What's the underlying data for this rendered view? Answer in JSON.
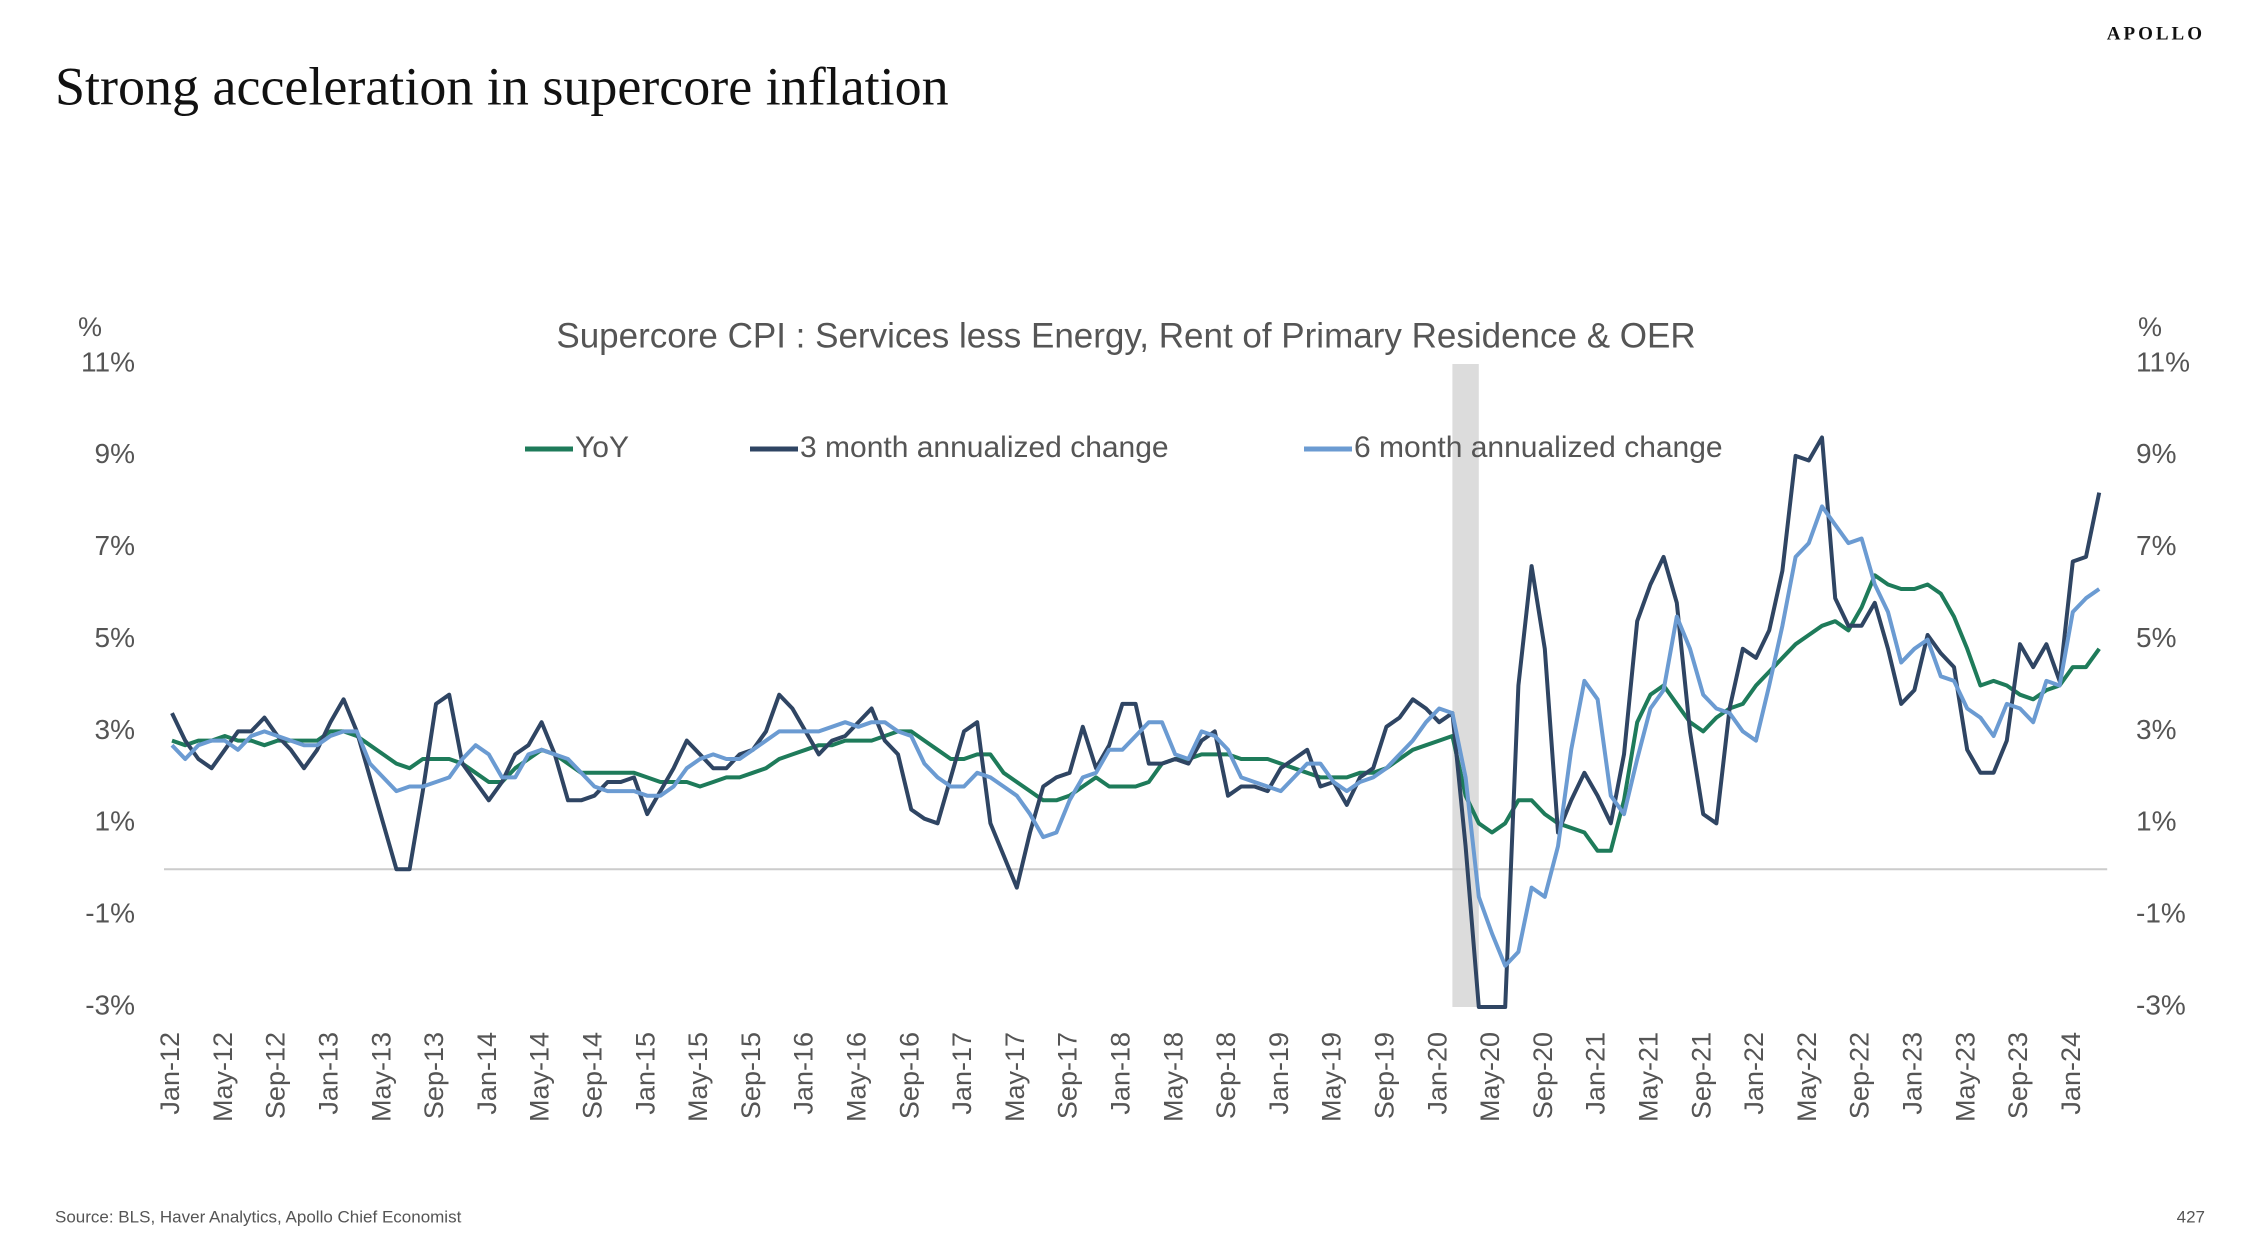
{
  "brand": "APOLLO",
  "page_title": "Strong acceleration in supercore inflation",
  "source": "Source: BLS, Haver Analytics, Apollo Chief Economist",
  "page_number": "427",
  "chart_data": {
    "type": "line",
    "title": "Supercore CPI : Services less Energy, Rent of Primary Residence & OER",
    "y_label": "%",
    "ylim": [
      -3,
      11
    ],
    "yticks": [
      {
        "value": 11,
        "label": "11%"
      },
      {
        "value": 9,
        "label": "9%"
      },
      {
        "value": 7,
        "label": "7%"
      },
      {
        "value": 5,
        "label": "5%"
      },
      {
        "value": 3,
        "label": "3%"
      },
      {
        "value": 1,
        "label": "1%"
      },
      {
        "value": -1,
        "label": "-1%"
      },
      {
        "value": -3,
        "label": "-3%"
      }
    ],
    "shaded_categories": [
      97,
      99
    ],
    "categories": [
      "Jan-12",
      null,
      null,
      null,
      "May-12",
      null,
      null,
      null,
      "Sep-12",
      null,
      null,
      null,
      "Jan-13",
      null,
      null,
      null,
      "May-13",
      null,
      null,
      null,
      "Sep-13",
      null,
      null,
      null,
      "Jan-14",
      null,
      null,
      null,
      "May-14",
      null,
      null,
      null,
      "Sep-14",
      null,
      null,
      null,
      "Jan-15",
      null,
      null,
      null,
      "May-15",
      null,
      null,
      null,
      "Sep-15",
      null,
      null,
      null,
      "Jan-16",
      null,
      null,
      null,
      "May-16",
      null,
      null,
      null,
      "Sep-16",
      null,
      null,
      null,
      "Jan-17",
      null,
      null,
      null,
      "May-17",
      null,
      null,
      null,
      "Sep-17",
      null,
      null,
      null,
      "Jan-18",
      null,
      null,
      null,
      "May-18",
      null,
      null,
      null,
      "Sep-18",
      null,
      null,
      null,
      "Jan-19",
      null,
      null,
      null,
      "May-19",
      null,
      null,
      null,
      "Sep-19",
      null,
      null,
      null,
      "Jan-20",
      null,
      null,
      null,
      "May-20",
      null,
      null,
      null,
      "Sep-20",
      null,
      null,
      null,
      "Jan-21",
      null,
      null,
      null,
      "May-21",
      null,
      null,
      null,
      "Sep-21",
      null,
      null,
      null,
      "Jan-22",
      null,
      null,
      null,
      "May-22",
      null,
      null,
      null,
      "Sep-22",
      null,
      null,
      null,
      "Jan-23",
      null,
      null,
      null,
      "May-23",
      null,
      null,
      null,
      "Sep-23",
      null,
      null,
      null,
      "Jan-24",
      null,
      null
    ],
    "series": [
      {
        "name": "YoY",
        "color": "#1e7b5a",
        "values": [
          2.8,
          2.7,
          2.8,
          2.8,
          2.9,
          2.8,
          2.8,
          2.7,
          2.8,
          2.8,
          2.8,
          2.8,
          3.0,
          3.0,
          2.9,
          2.7,
          2.5,
          2.3,
          2.2,
          2.4,
          2.4,
          2.4,
          2.3,
          2.1,
          1.9,
          1.9,
          2.2,
          2.4,
          2.6,
          2.5,
          2.3,
          2.1,
          2.1,
          2.1,
          2.1,
          2.1,
          2.0,
          1.9,
          1.9,
          1.9,
          1.8,
          1.9,
          2.0,
          2.0,
          2.1,
          2.2,
          2.4,
          2.5,
          2.6,
          2.7,
          2.7,
          2.8,
          2.8,
          2.8,
          2.9,
          3.0,
          3.0,
          2.8,
          2.6,
          2.4,
          2.4,
          2.5,
          2.5,
          2.1,
          1.9,
          1.7,
          1.5,
          1.5,
          1.6,
          1.8,
          2.0,
          1.8,
          1.8,
          1.8,
          1.9,
          2.3,
          2.4,
          2.4,
          2.5,
          2.5,
          2.5,
          2.4,
          2.4,
          2.4,
          2.3,
          2.2,
          2.1,
          2.0,
          2.0,
          2.0,
          2.1,
          2.1,
          2.2,
          2.4,
          2.6,
          2.7,
          2.8,
          2.9,
          1.6,
          1.0,
          0.8,
          1.0,
          1.5,
          1.5,
          1.2,
          1.0,
          0.9,
          0.8,
          0.4,
          0.4,
          1.5,
          3.2,
          3.8,
          4.0,
          3.6,
          3.2,
          3.0,
          3.3,
          3.5,
          3.6,
          4.0,
          4.3,
          4.6,
          4.9,
          5.1,
          5.3,
          5.4,
          5.2,
          5.7,
          6.4,
          6.2,
          6.1,
          6.1,
          6.2,
          6.0,
          5.5,
          4.8,
          4.0,
          4.1,
          4.0,
          3.8,
          3.7,
          3.9,
          4.0,
          4.4,
          4.4,
          4.8
        ]
      },
      {
        "name": "3 month annualized change",
        "color": "#2f4563",
        "values": [
          3.4,
          2.8,
          2.4,
          2.2,
          2.6,
          3.0,
          3.0,
          3.3,
          2.9,
          2.6,
          2.2,
          2.6,
          3.2,
          3.7,
          3.0,
          2.0,
          1.0,
          0.0,
          0.0,
          1.7,
          3.6,
          3.8,
          2.3,
          1.9,
          1.5,
          1.9,
          2.5,
          2.7,
          3.2,
          2.5,
          1.5,
          1.5,
          1.6,
          1.9,
          1.9,
          2.0,
          1.2,
          1.7,
          2.2,
          2.8,
          2.5,
          2.2,
          2.2,
          2.5,
          2.6,
          3.0,
          3.8,
          3.5,
          3.0,
          2.5,
          2.8,
          2.9,
          3.2,
          3.5,
          2.8,
          2.5,
          1.3,
          1.1,
          1.0,
          2.0,
          3.0,
          3.2,
          1.0,
          0.3,
          -0.4,
          0.8,
          1.8,
          2.0,
          2.1,
          3.1,
          2.2,
          2.7,
          3.6,
          3.6,
          2.3,
          2.3,
          2.4,
          2.3,
          2.8,
          3.0,
          1.6,
          1.8,
          1.8,
          1.7,
          2.2,
          2.4,
          2.6,
          1.8,
          1.9,
          1.4,
          2.0,
          2.2,
          3.1,
          3.3,
          3.7,
          3.5,
          3.2,
          3.4,
          0.5,
          -3.0,
          -3.0,
          -3.0,
          4.0,
          6.6,
          4.8,
          0.8,
          1.5,
          2.1,
          1.6,
          1.0,
          2.5,
          5.4,
          6.2,
          6.8,
          5.8,
          3.0,
          1.2,
          1.0,
          3.5,
          4.8,
          4.6,
          5.2,
          6.5,
          9.0,
          8.9,
          9.4,
          5.9,
          5.3,
          5.3,
          5.8,
          4.8,
          3.6,
          3.9,
          5.1,
          4.7,
          4.4,
          2.6,
          2.1,
          2.1,
          2.8,
          4.9,
          4.4,
          4.9,
          4.1,
          6.7,
          6.8,
          8.2
        ]
      },
      {
        "name": "6 month annualized change",
        "color": "#6b9bd2",
        "values": [
          2.7,
          2.4,
          2.7,
          2.8,
          2.8,
          2.6,
          2.9,
          3.0,
          2.9,
          2.8,
          2.7,
          2.7,
          2.9,
          3.0,
          3.0,
          2.3,
          2.0,
          1.7,
          1.8,
          1.8,
          1.9,
          2.0,
          2.4,
          2.7,
          2.5,
          2.0,
          2.0,
          2.5,
          2.6,
          2.5,
          2.4,
          2.1,
          1.8,
          1.7,
          1.7,
          1.7,
          1.6,
          1.6,
          1.8,
          2.2,
          2.4,
          2.5,
          2.4,
          2.4,
          2.6,
          2.8,
          3.0,
          3.0,
          3.0,
          3.0,
          3.1,
          3.2,
          3.1,
          3.2,
          3.2,
          3.0,
          2.9,
          2.3,
          2.0,
          1.8,
          1.8,
          2.1,
          2.0,
          1.8,
          1.6,
          1.2,
          0.7,
          0.8,
          1.5,
          2.0,
          2.1,
          2.6,
          2.6,
          2.9,
          3.2,
          3.2,
          2.5,
          2.4,
          3.0,
          2.9,
          2.6,
          2.0,
          1.9,
          1.8,
          1.7,
          2.0,
          2.3,
          2.3,
          1.9,
          1.7,
          1.9,
          2.0,
          2.2,
          2.5,
          2.8,
          3.2,
          3.5,
          3.4,
          2.0,
          -0.6,
          -1.4,
          -2.1,
          -1.8,
          -0.4,
          -0.6,
          0.5,
          2.6,
          4.1,
          3.7,
          1.6,
          1.2,
          2.4,
          3.5,
          3.9,
          5.5,
          4.8,
          3.8,
          3.5,
          3.4,
          3.0,
          2.8,
          4.0,
          5.3,
          6.8,
          7.1,
          7.9,
          7.5,
          7.1,
          7.2,
          6.2,
          5.6,
          4.5,
          4.8,
          5.0,
          4.2,
          4.1,
          3.5,
          3.3,
          2.9,
          3.6,
          3.5,
          3.2,
          4.1,
          4.0,
          5.6,
          5.9,
          6.1
        ]
      }
    ]
  }
}
